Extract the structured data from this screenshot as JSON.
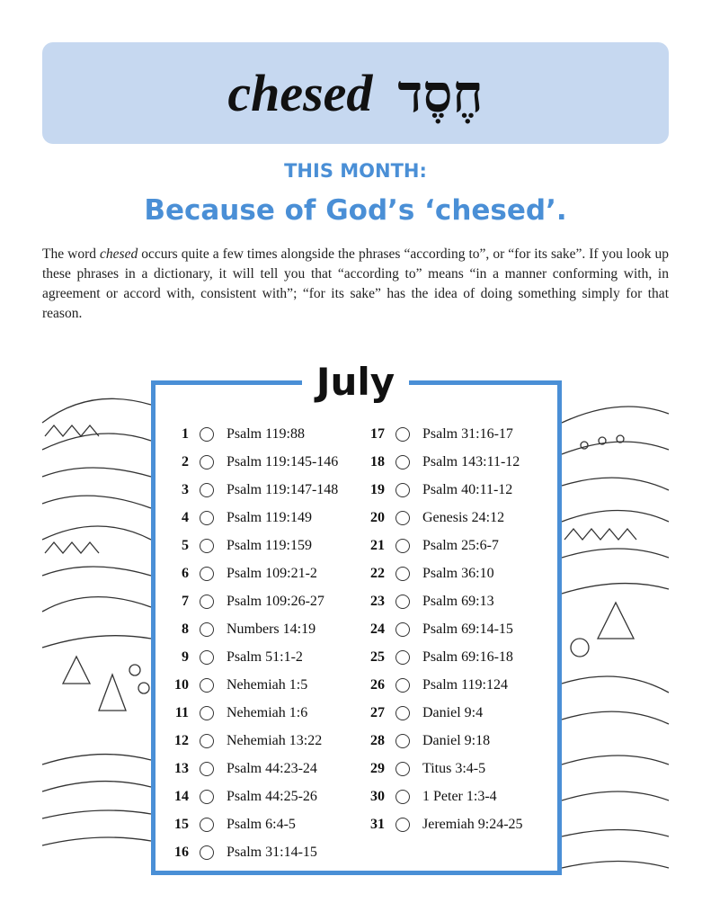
{
  "header": {
    "title": "chesed",
    "hebrew": "חֶסֶד"
  },
  "kicker": "THIS MONTH:",
  "subtitle": "Because of God’s ‘chesed’.",
  "paragraph": [
    "The word ",
    "chesed",
    " occurs quite a few times alongside the phrases “according to”, or “for its sake”. If you look up these phrases in a dictionary, it will tell you that “according to” means “in a manner conforming with, in agreement or accord with, consistent with”; “for its sake” has the idea of doing something simply for that reason."
  ],
  "month": "July",
  "readings": [
    {
      "day": 1,
      "ref": "Psalm 119:88"
    },
    {
      "day": 2,
      "ref": "Psalm 119:145-146"
    },
    {
      "day": 3,
      "ref": "Psalm 119:147-148"
    },
    {
      "day": 4,
      "ref": "Psalm 119:149"
    },
    {
      "day": 5,
      "ref": "Psalm 119:159"
    },
    {
      "day": 6,
      "ref": "Psalm 109:21-2"
    },
    {
      "day": 7,
      "ref": "Psalm 109:26-27"
    },
    {
      "day": 8,
      "ref": "Numbers 14:19"
    },
    {
      "day": 9,
      "ref": "Psalm 51:1-2"
    },
    {
      "day": 10,
      "ref": "Nehemiah 1:5"
    },
    {
      "day": 11,
      "ref": "Nehemiah 1:6"
    },
    {
      "day": 12,
      "ref": "Nehemiah 13:22"
    },
    {
      "day": 13,
      "ref": "Psalm 44:23-24"
    },
    {
      "day": 14,
      "ref": "Psalm 44:25-26"
    },
    {
      "day": 15,
      "ref": "Psalm 6:4-5"
    },
    {
      "day": 16,
      "ref": "Psalm 31:14-15"
    },
    {
      "day": 17,
      "ref": "Psalm 31:16-17"
    },
    {
      "day": 18,
      "ref": "Psalm 143:11-12"
    },
    {
      "day": 19,
      "ref": "Psalm 40:11-12"
    },
    {
      "day": 20,
      "ref": "Genesis 24:12"
    },
    {
      "day": 21,
      "ref": "Psalm 25:6-7"
    },
    {
      "day": 22,
      "ref": "Psalm 36:10"
    },
    {
      "day": 23,
      "ref": "Psalm 69:13"
    },
    {
      "day": 24,
      "ref": "Psalm 69:14-15"
    },
    {
      "day": 25,
      "ref": "Psalm 69:16-18"
    },
    {
      "day": 26,
      "ref": "Psalm 119:124"
    },
    {
      "day": 27,
      "ref": "Daniel 9:4"
    },
    {
      "day": 28,
      "ref": "Daniel 9:18"
    },
    {
      "day": 29,
      "ref": "Titus 3:4-5"
    },
    {
      "day": 30,
      "ref": "1 Peter 1:3-4"
    },
    {
      "day": 31,
      "ref": "Jeremiah 9:24-25"
    }
  ]
}
